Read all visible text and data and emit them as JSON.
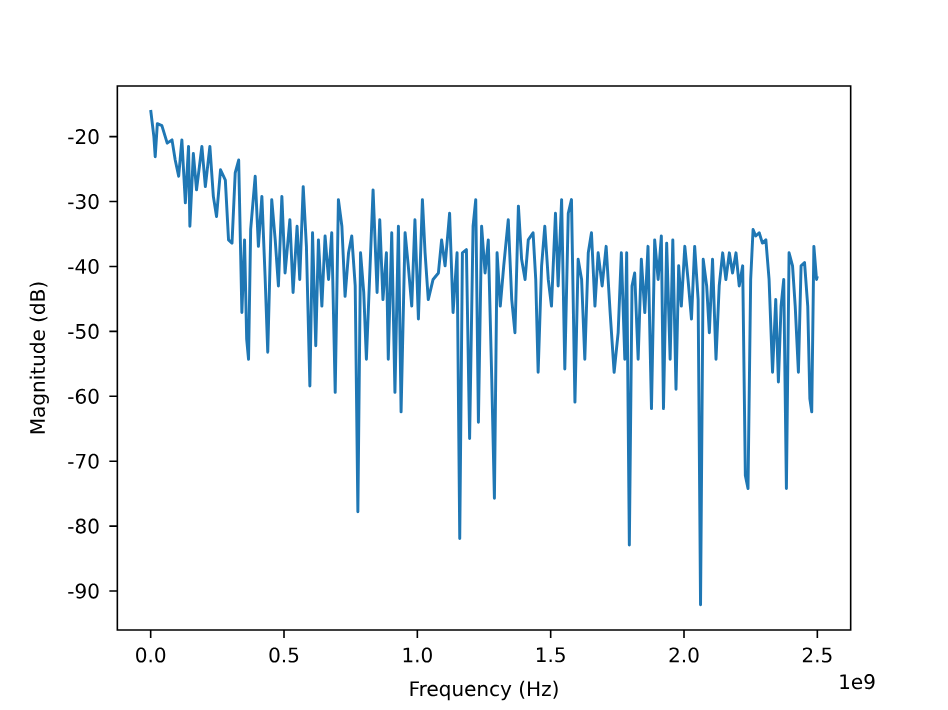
{
  "chart_data": {
    "type": "line",
    "xlabel": "Frequency (Hz)",
    "ylabel": "Magnitude (dB)",
    "annotations": [
      "1e9"
    ],
    "xlim": [
      -0.125,
      2.625
    ],
    "ylim": [
      -96,
      -12.2
    ],
    "xticks": [
      {
        "value": 0,
        "label": "0.0"
      },
      0.5,
      {
        "value": 1,
        "label": "1.0"
      },
      1.5,
      {
        "value": 2,
        "label": "2.0"
      },
      2.5
    ],
    "yticks": [
      -90,
      -80,
      -70,
      -60,
      -50,
      -40,
      -30,
      -20
    ],
    "series": [
      {
        "color": "#1f77b4",
        "x": [
          0.0,
          0.012,
          0.017,
          0.025,
          0.042,
          0.062,
          0.08,
          0.092,
          0.105,
          0.117,
          0.13,
          0.142,
          0.147,
          0.16,
          0.172,
          0.192,
          0.205,
          0.222,
          0.235,
          0.247,
          0.262,
          0.28,
          0.292,
          0.305,
          0.317,
          0.33,
          0.342,
          0.352,
          0.36,
          0.367,
          0.375,
          0.392,
          0.404,
          0.417,
          0.429,
          0.439,
          0.454,
          0.467,
          0.479,
          0.492,
          0.504,
          0.522,
          0.534,
          0.549,
          0.559,
          0.572,
          0.584,
          0.597,
          0.607,
          0.619,
          0.629,
          0.642,
          0.654,
          0.667,
          0.679,
          0.692,
          0.704,
          0.717,
          0.729,
          0.742,
          0.754,
          0.767,
          0.777,
          0.787,
          0.799,
          0.809,
          0.834,
          0.849,
          0.859,
          0.871,
          0.884,
          0.891,
          0.904,
          0.916,
          0.929,
          0.939,
          0.954,
          0.966,
          0.979,
          0.991,
          1.004,
          1.019,
          1.029,
          1.041,
          1.059,
          1.079,
          1.091,
          1.104,
          1.121,
          1.134,
          1.149,
          1.159,
          1.169,
          1.184,
          1.196,
          1.209,
          1.219,
          1.229,
          1.241,
          1.254,
          1.266,
          1.279,
          1.289,
          1.299,
          1.311,
          1.324,
          1.341,
          1.354,
          1.366,
          1.379,
          1.391,
          1.404,
          1.416,
          1.434,
          1.444,
          1.453,
          1.466,
          1.478,
          1.491,
          1.503,
          1.518,
          1.528,
          1.541,
          1.553,
          1.566,
          1.578,
          1.591,
          1.603,
          1.616,
          1.628,
          1.641,
          1.653,
          1.666,
          1.678,
          1.693,
          1.708,
          1.723,
          1.738,
          1.753,
          1.765,
          1.778,
          1.785,
          1.795,
          1.805,
          1.815,
          1.828,
          1.84,
          1.853,
          1.865,
          1.878,
          1.89,
          1.903,
          1.915,
          1.923,
          1.935,
          1.948,
          1.958,
          1.97,
          1.98,
          1.99,
          2.003,
          2.015,
          2.028,
          2.04,
          2.053,
          2.062,
          2.072,
          2.085,
          2.095,
          2.107,
          2.12,
          2.132,
          2.145,
          2.157,
          2.17,
          2.182,
          2.195,
          2.207,
          2.22,
          2.23,
          2.24,
          2.25,
          2.259,
          2.269,
          2.282,
          2.294,
          2.307,
          2.319,
          2.332,
          2.344,
          2.354,
          2.364,
          2.374,
          2.384,
          2.394,
          2.407,
          2.417,
          2.429,
          2.439,
          2.452,
          2.464,
          2.472,
          2.479,
          2.487,
          2.497,
          2.5
        ],
        "values": [
          -15.9,
          -20.0,
          -23.1,
          -18.0,
          -18.3,
          -21.0,
          -20.5,
          -23.6,
          -26.1,
          -20.5,
          -30.2,
          -21.5,
          -33.8,
          -22.6,
          -28.2,
          -21.5,
          -27.7,
          -21.5,
          -29.2,
          -32.3,
          -25.1,
          -26.7,
          -35.9,
          -36.4,
          -25.6,
          -23.6,
          -47.1,
          -35.9,
          -51.2,
          -54.3,
          -34.3,
          -26.1,
          -36.9,
          -29.2,
          -41.5,
          -53.2,
          -29.7,
          -35.9,
          -43.0,
          -29.2,
          -41.0,
          -32.8,
          -44.0,
          -33.8,
          -42.0,
          -27.7,
          -36.9,
          -58.4,
          -34.8,
          -52.2,
          -35.9,
          -46.1,
          -35.3,
          -42.0,
          -34.8,
          -59.4,
          -29.7,
          -33.8,
          -44.6,
          -37.9,
          -35.3,
          -43.0,
          -77.8,
          -37.9,
          -44.0,
          -54.3,
          -28.2,
          -44.0,
          -32.8,
          -45.1,
          -37.9,
          -54.3,
          -34.8,
          -59.4,
          -33.8,
          -62.4,
          -34.8,
          -39.9,
          -46.1,
          -32.8,
          -48.1,
          -29.7,
          -37.9,
          -45.1,
          -42.0,
          -41.0,
          -35.9,
          -39.9,
          -31.8,
          -47.1,
          -37.9,
          -81.9,
          -37.9,
          -37.4,
          -66.5,
          -33.8,
          -29.7,
          -64.0,
          -33.8,
          -41.0,
          -35.9,
          -57.3,
          -75.7,
          -37.9,
          -46.1,
          -39.9,
          -32.8,
          -45.1,
          -50.2,
          -30.7,
          -38.9,
          -42.0,
          -35.9,
          -34.8,
          -42.0,
          -56.3,
          -39.9,
          -33.8,
          -42.0,
          -46.1,
          -31.8,
          -43.0,
          -29.7,
          -55.8,
          -31.8,
          -29.7,
          -60.9,
          -38.9,
          -42.0,
          -54.3,
          -37.9,
          -34.8,
          -46.1,
          -37.9,
          -43.0,
          -36.9,
          -47.1,
          -56.3,
          -50.2,
          -37.9,
          -54.3,
          -37.9,
          -82.9,
          -43.0,
          -41.0,
          -54.3,
          -38.9,
          -47.1,
          -36.9,
          -61.9,
          -35.9,
          -42.0,
          -35.3,
          -61.9,
          -36.4,
          -54.3,
          -35.9,
          -58.9,
          -39.9,
          -46.1,
          -36.9,
          -42.0,
          -48.1,
          -36.9,
          -45.1,
          -92.1,
          -38.9,
          -43.0,
          -50.2,
          -38.9,
          -54.3,
          -43.0,
          -37.9,
          -42.0,
          -37.9,
          -41.0,
          -37.9,
          -43.0,
          -39.9,
          -72.2,
          -74.2,
          -42.0,
          -34.3,
          -35.3,
          -34.8,
          -36.4,
          -35.9,
          -42.0,
          -56.3,
          -45.1,
          -57.8,
          -46.1,
          -42.0,
          -74.2,
          -37.9,
          -39.9,
          -46.1,
          -56.3,
          -39.9,
          -39.4,
          -46.1,
          -60.4,
          -62.4,
          -36.9,
          -42.0,
          -41.5
        ]
      }
    ]
  }
}
